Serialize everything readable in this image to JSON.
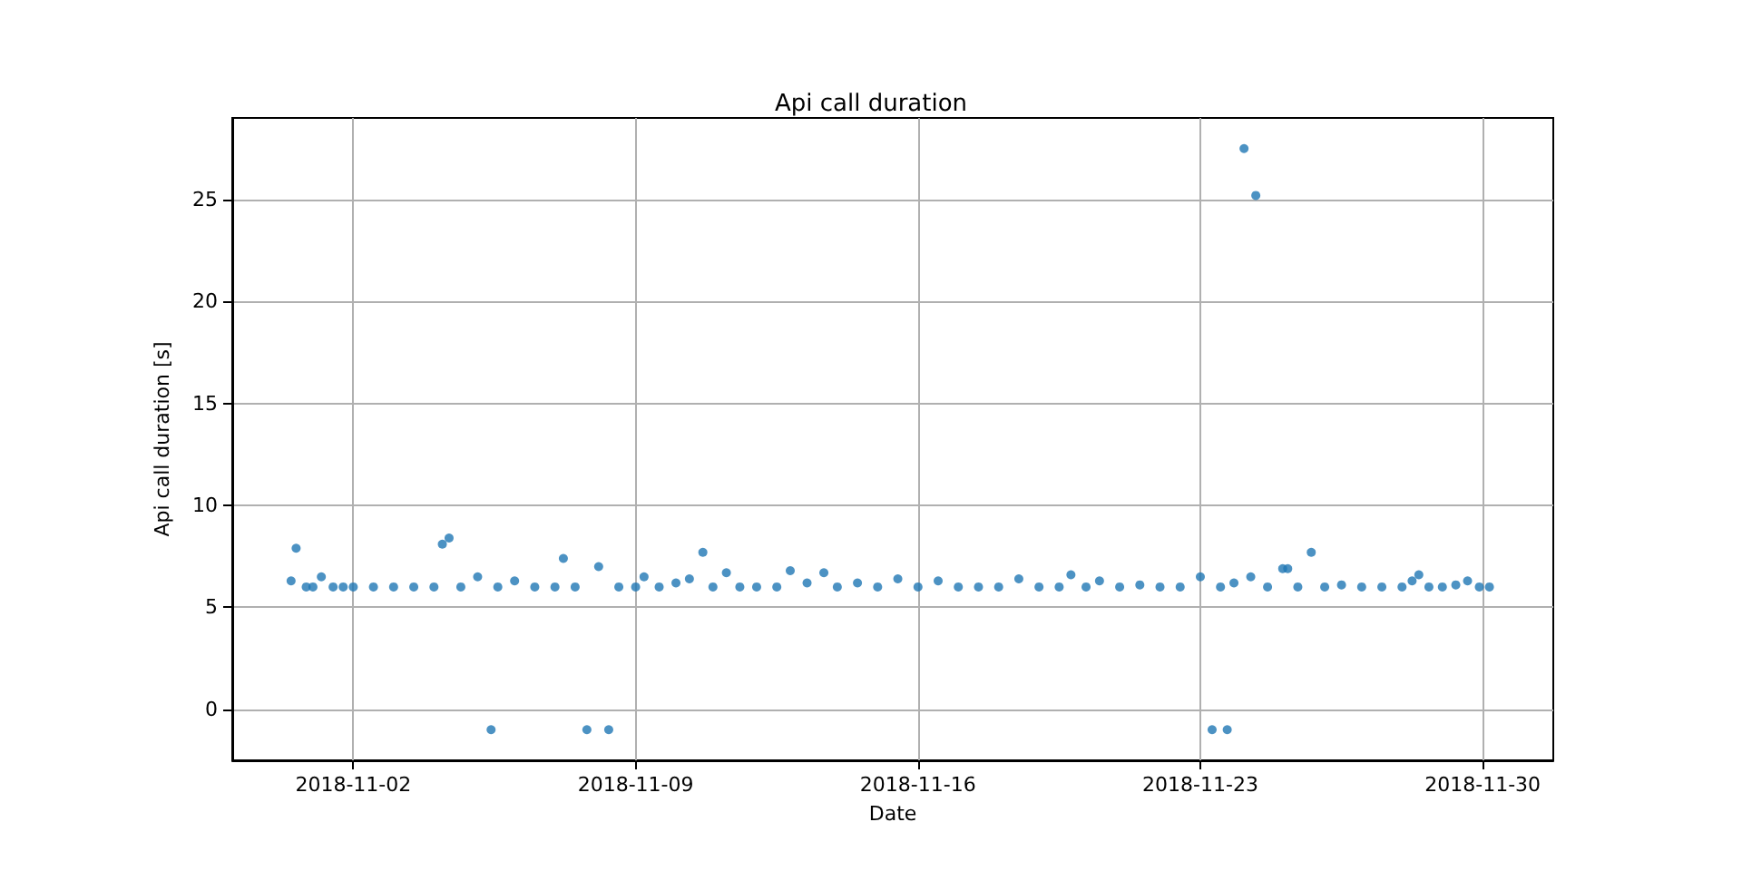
{
  "chart_data": {
    "type": "scatter",
    "title": "Api call duration",
    "xlabel": "Date",
    "ylabel": "Api call duration [s]",
    "x": [
      "2018-10-31T11:00",
      "2018-10-31T14:00",
      "2018-10-31T20:00",
      "2018-11-01T00:00",
      "2018-11-01T05:00",
      "2018-11-01T12:00",
      "2018-11-01T18:00",
      "2018-11-02T00:00",
      "2018-11-02T12:00",
      "2018-11-03T00:00",
      "2018-11-03T12:00",
      "2018-11-04T00:00",
      "2018-11-04T05:00",
      "2018-11-04T09:00",
      "2018-11-04T16:00",
      "2018-11-05T02:00",
      "2018-11-05T10:00",
      "2018-11-05T14:00",
      "2018-11-06T00:00",
      "2018-11-06T12:00",
      "2018-11-07T00:00",
      "2018-11-07T05:00",
      "2018-11-07T12:00",
      "2018-11-07T19:00",
      "2018-11-08T02:00",
      "2018-11-08T08:00",
      "2018-11-08T14:00",
      "2018-11-09T00:00",
      "2018-11-09T05:00",
      "2018-11-09T14:00",
      "2018-11-10T00:00",
      "2018-11-10T08:00",
      "2018-11-10T16:00",
      "2018-11-10T22:00",
      "2018-11-11T06:00",
      "2018-11-11T14:00",
      "2018-11-12T00:00",
      "2018-11-12T12:00",
      "2018-11-12T20:00",
      "2018-11-13T06:00",
      "2018-11-13T16:00",
      "2018-11-14T00:00",
      "2018-11-14T12:00",
      "2018-11-15T00:00",
      "2018-11-15T12:00",
      "2018-11-16T00:00",
      "2018-11-16T12:00",
      "2018-11-17T00:00",
      "2018-11-17T12:00",
      "2018-11-18T00:00",
      "2018-11-18T12:00",
      "2018-11-19T00:00",
      "2018-11-19T12:00",
      "2018-11-19T19:00",
      "2018-11-20T04:00",
      "2018-11-20T12:00",
      "2018-11-21T00:00",
      "2018-11-21T12:00",
      "2018-11-22T00:00",
      "2018-11-22T12:00",
      "2018-11-23T00:00",
      "2018-11-23T07:00",
      "2018-11-23T12:00",
      "2018-11-23T16:00",
      "2018-11-23T20:00",
      "2018-11-24T02:00",
      "2018-11-24T06:00",
      "2018-11-24T09:00",
      "2018-11-24T16:00",
      "2018-11-25T01:00",
      "2018-11-25T04:00",
      "2018-11-25T10:00",
      "2018-11-25T18:00",
      "2018-11-26T02:00",
      "2018-11-26T12:00",
      "2018-11-27T00:00",
      "2018-11-27T12:00",
      "2018-11-28T00:00",
      "2018-11-28T06:00",
      "2018-11-28T10:00",
      "2018-11-28T16:00",
      "2018-11-29T00:00",
      "2018-11-29T08:00",
      "2018-11-29T15:00",
      "2018-11-29T22:00",
      "2018-11-30T04:00"
    ],
    "values": [
      6.3,
      7.9,
      6.0,
      6.0,
      6.5,
      6.0,
      6.0,
      6.0,
      6.0,
      6.0,
      6.0,
      6.0,
      8.1,
      8.4,
      6.0,
      6.5,
      -1.0,
      6.0,
      6.3,
      6.0,
      6.0,
      7.4,
      6.0,
      -1.0,
      7.0,
      -1.0,
      6.0,
      6.0,
      6.5,
      6.0,
      6.2,
      6.4,
      7.7,
      6.0,
      6.7,
      6.0,
      6.0,
      6.0,
      6.8,
      6.2,
      6.7,
      6.0,
      6.2,
      6.0,
      6.4,
      6.0,
      6.3,
      6.0,
      6.0,
      6.0,
      6.4,
      6.0,
      6.0,
      6.6,
      6.0,
      6.3,
      6.0,
      6.1,
      6.0,
      6.0,
      6.5,
      -1.0,
      6.0,
      -1.0,
      6.2,
      27.5,
      6.5,
      25.2,
      6.0,
      6.9,
      6.9,
      6.0,
      7.7,
      6.0,
      6.1,
      6.0,
      6.0,
      6.0,
      6.3,
      6.6,
      6.0,
      6.0,
      6.1,
      6.3,
      6.0,
      6.0
    ],
    "color": "#1f77b4",
    "marker": "circle",
    "xlim": [
      "2018-10-30T00:00",
      "2018-12-01T18:00"
    ],
    "xticks": [
      "2018-11-02",
      "2018-11-09",
      "2018-11-16",
      "2018-11-23",
      "2018-11-30"
    ],
    "ylim": [
      -2.5,
      29
    ],
    "yticks": [
      0,
      5,
      10,
      15,
      20,
      25
    ],
    "grid": true
  }
}
